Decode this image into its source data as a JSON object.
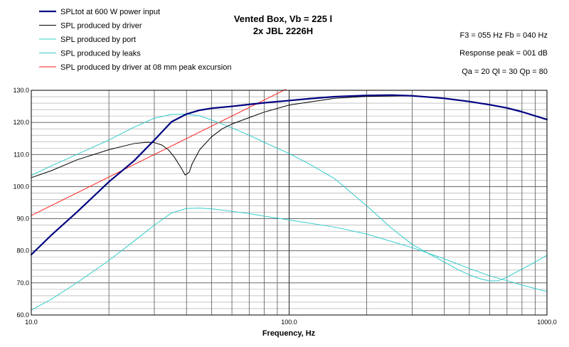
{
  "chart_data": {
    "type": "line",
    "title_line1": "Vented Box, Vb = 225 l",
    "title_line2": "2x JBL 2226H",
    "xlabel": "Frequency, Hz",
    "ylabel": "",
    "x_scale": "log",
    "xlim": [
      10,
      1000
    ],
    "ylim": [
      60,
      130
    ],
    "grid": true,
    "legend_position": "top-left",
    "x_tick_labels": [
      {
        "value": 10,
        "label": "10.0"
      },
      {
        "value": 100,
        "label": "100.0"
      },
      {
        "value": 1000,
        "label": "1000.0"
      }
    ],
    "y_tick_labels": [
      {
        "value": 130,
        "label": "130.0"
      },
      {
        "value": 120,
        "label": "120.0"
      },
      {
        "value": 110,
        "label": "110.0"
      },
      {
        "value": 100,
        "label": "100.0"
      },
      {
        "value": 90,
        "label": "90.0"
      },
      {
        "value": 80,
        "label": "80.0"
      },
      {
        "value": 70,
        "label": "70.0"
      },
      {
        "value": 60,
        "label": "60.0"
      }
    ],
    "info_lines": [
      "F3 = 055 Hz  Fb = 040 Hz",
      "Response peak = 001 dB",
      "Qa = 20  Ql = 30  Qp = 80"
    ],
    "series": [
      {
        "name": "SPLtot at 600 W power input",
        "color": "#000080",
        "thick": true,
        "points": [
          [
            10,
            78.8
          ],
          [
            12,
            85
          ],
          [
            15,
            92
          ],
          [
            18,
            98
          ],
          [
            20,
            101.5
          ],
          [
            25,
            108
          ],
          [
            30,
            114.5
          ],
          [
            35,
            120.2
          ],
          [
            40,
            122.6
          ],
          [
            45,
            123.8
          ],
          [
            50,
            124.4
          ],
          [
            60,
            125
          ],
          [
            70,
            125.6
          ],
          [
            80,
            126.1
          ],
          [
            100,
            126.8
          ],
          [
            120,
            127.4
          ],
          [
            150,
            128
          ],
          [
            200,
            128.4
          ],
          [
            250,
            128.5
          ],
          [
            300,
            128.3
          ],
          [
            400,
            127.5
          ],
          [
            500,
            126.5
          ],
          [
            600,
            125.5
          ],
          [
            700,
            124.5
          ],
          [
            800,
            123.3
          ],
          [
            1000,
            120.9
          ]
        ]
      },
      {
        "name": "SPL produced by driver",
        "color": "#000000",
        "thick": false,
        "points": [
          [
            10,
            102.8
          ],
          [
            12,
            105
          ],
          [
            15,
            108.3
          ],
          [
            20,
            111.5
          ],
          [
            25,
            113.4
          ],
          [
            28,
            113.8
          ],
          [
            30,
            113.7
          ],
          [
            32,
            113
          ],
          [
            34,
            111.5
          ],
          [
            36,
            109
          ],
          [
            38,
            106
          ],
          [
            39.5,
            103.6
          ],
          [
            41,
            104.5
          ],
          [
            42,
            107
          ],
          [
            45,
            111.5
          ],
          [
            50,
            115.5
          ],
          [
            55,
            118
          ],
          [
            60,
            119.5
          ],
          [
            70,
            121.5
          ],
          [
            80,
            123.2
          ],
          [
            100,
            125.4
          ],
          [
            150,
            127.5
          ],
          [
            200,
            128.1
          ],
          [
            300,
            128.3
          ],
          [
            400,
            127.5
          ],
          [
            500,
            126.5
          ],
          [
            600,
            125.5
          ],
          [
            700,
            124.5
          ],
          [
            800,
            123.3
          ],
          [
            1000,
            120.9
          ]
        ]
      },
      {
        "name": "SPL produced by port",
        "color": "#33cccc",
        "thick": false,
        "points": [
          [
            10,
            103.5
          ],
          [
            12,
            106.5
          ],
          [
            15,
            110
          ],
          [
            20,
            114.5
          ],
          [
            25,
            118.5
          ],
          [
            30,
            121.3
          ],
          [
            35,
            122.5
          ],
          [
            40,
            122.6
          ],
          [
            45,
            122
          ],
          [
            50,
            120.8
          ],
          [
            60,
            118.3
          ],
          [
            70,
            116
          ],
          [
            80,
            113.8
          ],
          [
            100,
            110.3
          ],
          [
            120,
            107
          ],
          [
            150,
            102.5
          ],
          [
            200,
            94
          ],
          [
            250,
            87
          ],
          [
            300,
            82
          ],
          [
            350,
            79
          ],
          [
            400,
            76.5
          ],
          [
            450,
            74.2
          ],
          [
            500,
            72.5
          ],
          [
            550,
            71.3
          ],
          [
            600,
            70.6
          ],
          [
            650,
            70.7
          ],
          [
            700,
            71.8
          ],
          [
            800,
            74.3
          ],
          [
            900,
            76.5
          ],
          [
            1000,
            78.6
          ]
        ]
      },
      {
        "name": "SPL produced by leaks",
        "color": "#33cccc",
        "thick": false,
        "points": [
          [
            10,
            61.5
          ],
          [
            12,
            65
          ],
          [
            15,
            70
          ],
          [
            20,
            77
          ],
          [
            25,
            83
          ],
          [
            30,
            88
          ],
          [
            35,
            91.8
          ],
          [
            40,
            93.2
          ],
          [
            45,
            93.3
          ],
          [
            50,
            93.1
          ],
          [
            60,
            92.3
          ],
          [
            70,
            91.6
          ],
          [
            80,
            90.8
          ],
          [
            100,
            89.6
          ],
          [
            150,
            87.4
          ],
          [
            200,
            85.2
          ],
          [
            300,
            81
          ],
          [
            400,
            77.5
          ],
          [
            500,
            74.5
          ],
          [
            600,
            72.2
          ],
          [
            700,
            70.7
          ],
          [
            800,
            69.3
          ],
          [
            1000,
            67.3
          ]
        ]
      },
      {
        "name": "SPL produced by driver at 08 mm peak excursion",
        "color": "#ff2222",
        "thick": false,
        "points": [
          [
            10,
            91
          ],
          [
            97,
            130.3
          ]
        ]
      }
    ]
  }
}
